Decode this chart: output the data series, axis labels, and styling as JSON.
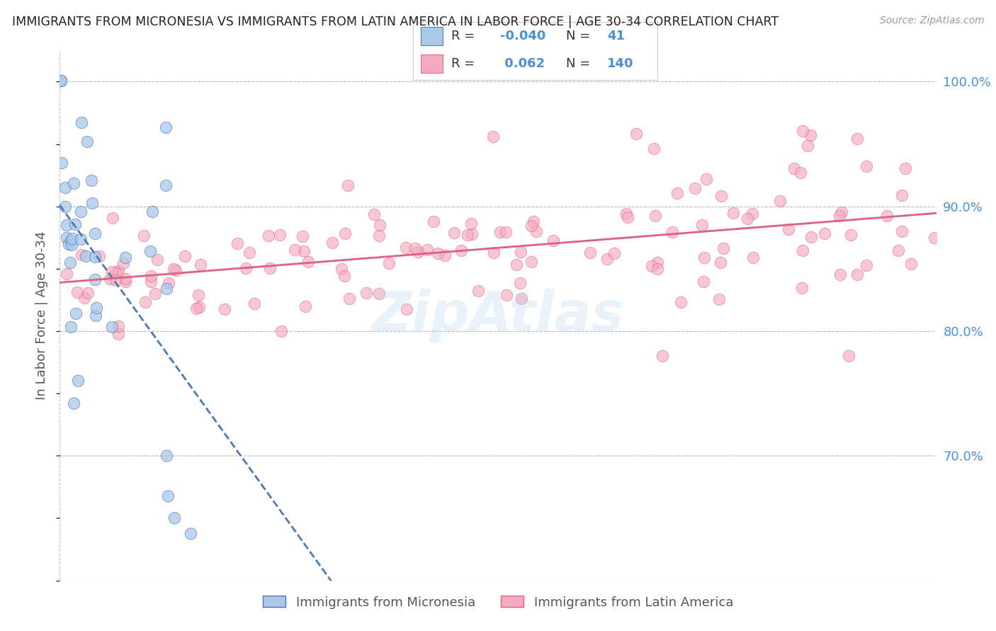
{
  "title": "IMMIGRANTS FROM MICRONESIA VS IMMIGRANTS FROM LATIN AMERICA IN LABOR FORCE | AGE 30-34 CORRELATION CHART",
  "source": "Source: ZipAtlas.com",
  "ylabel": "In Labor Force | Age 30-34",
  "legend_labels": [
    "Immigrants from Micronesia",
    "Immigrants from Latin America"
  ],
  "legend_R": [
    -0.04,
    0.062
  ],
  "legend_N": [
    41,
    140
  ],
  "xmin": 0.0,
  "xmax": 0.8,
  "ymin": 0.6,
  "ymax": 1.025,
  "yticks": [
    0.7,
    0.8,
    0.9,
    1.0
  ],
  "ytick_labels": [
    "70.0%",
    "80.0%",
    "90.0%",
    "100.0%"
  ],
  "color_micro": "#aac8e8",
  "color_latin": "#f5aabe",
  "line_color_micro": "#4a78b8",
  "line_color_latin": "#e06080",
  "background_color": "#ffffff",
  "grid_color": "#bbbbbb",
  "title_color": "#222222",
  "axis_label_color": "#555555",
  "tick_label_color": "#4a90d9",
  "legend_text_color": "#333333",
  "legend_value_color": "#4a90d9",
  "watermark": "ZipAtlas",
  "source_color": "#999999"
}
